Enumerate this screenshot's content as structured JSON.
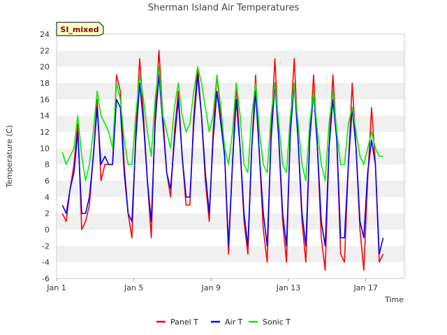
{
  "chart_data": {
    "type": "line",
    "title": "Sherman Island Air Temperatures",
    "xlabel": "Time",
    "ylabel": "Temperature (C)",
    "badge": "SI_mixed",
    "xlim": [
      1,
      19
    ],
    "ylim": [
      -6,
      24
    ],
    "y_ticks": [
      -6,
      -4,
      -2,
      0,
      2,
      4,
      6,
      8,
      10,
      12,
      14,
      16,
      18,
      20,
      22,
      24
    ],
    "x_ticks": [
      {
        "value": 1,
        "label": "Jan 1"
      },
      {
        "value": 5,
        "label": "Jan 5"
      },
      {
        "value": 9,
        "label": "Jan 9"
      },
      {
        "value": 13,
        "label": "Jan 13"
      },
      {
        "value": 17,
        "label": "Jan 17"
      }
    ],
    "grid": "horizontal bands",
    "legend_position": "bottom",
    "colors": {
      "band": "#f0f0f0",
      "axis": "#cccccc"
    },
    "series": [
      {
        "name": "Panel T",
        "color": "#ff0000",
        "x": [
          1.3,
          1.5,
          1.7,
          1.9,
          2.1,
          2.3,
          2.5,
          2.7,
          2.9,
          3.1,
          3.3,
          3.5,
          3.7,
          3.9,
          4.1,
          4.3,
          4.5,
          4.7,
          4.9,
          5.1,
          5.3,
          5.5,
          5.7,
          5.9,
          6.1,
          6.3,
          6.5,
          6.7,
          6.9,
          7.1,
          7.3,
          7.5,
          7.7,
          7.9,
          8.1,
          8.3,
          8.5,
          8.7,
          8.9,
          9.1,
          9.3,
          9.5,
          9.7,
          9.9,
          10.1,
          10.3,
          10.5,
          10.7,
          10.9,
          11.1,
          11.3,
          11.5,
          11.7,
          11.9,
          12.1,
          12.3,
          12.5,
          12.7,
          12.9,
          13.1,
          13.3,
          13.5,
          13.7,
          13.9,
          14.1,
          14.3,
          14.5,
          14.7,
          14.9,
          15.1,
          15.3,
          15.5,
          15.7,
          15.9,
          16.1,
          16.3,
          16.5,
          16.7,
          16.9,
          17.1,
          17.3,
          17.5,
          17.7,
          17.9
        ],
        "values": [
          2,
          1,
          5,
          8,
          13,
          0,
          1,
          3,
          9,
          16,
          6,
          8,
          8,
          8,
          19,
          17,
          8,
          2,
          -1,
          12,
          21,
          14,
          6,
          -1,
          14,
          22,
          14,
          7,
          4,
          12,
          17,
          9,
          3,
          3,
          14,
          20,
          14,
          6,
          1,
          12,
          19,
          14,
          9,
          -3,
          8,
          18,
          10,
          1,
          -3,
          10,
          19,
          9,
          0,
          -4,
          12,
          21,
          11,
          1,
          -4,
          13,
          21,
          11,
          1,
          -4,
          11,
          19,
          10,
          -1,
          -5,
          10,
          19,
          11,
          -3,
          -4,
          8,
          18,
          10,
          0,
          -5,
          6,
          15,
          8,
          -4,
          -3
        ]
      },
      {
        "name": "Air T",
        "color": "#0000ff",
        "x": [
          1.3,
          1.5,
          1.7,
          1.9,
          2.1,
          2.3,
          2.5,
          2.7,
          2.9,
          3.1,
          3.3,
          3.5,
          3.7,
          3.9,
          4.1,
          4.3,
          4.5,
          4.7,
          4.9,
          5.1,
          5.3,
          5.5,
          5.7,
          5.9,
          6.1,
          6.3,
          6.5,
          6.7,
          6.9,
          7.1,
          7.3,
          7.5,
          7.7,
          7.9,
          8.1,
          8.3,
          8.5,
          8.7,
          8.9,
          9.1,
          9.3,
          9.5,
          9.7,
          9.9,
          10.1,
          10.3,
          10.5,
          10.7,
          10.9,
          11.1,
          11.3,
          11.5,
          11.7,
          11.9,
          12.1,
          12.3,
          12.5,
          12.7,
          12.9,
          13.1,
          13.3,
          13.5,
          13.7,
          13.9,
          14.1,
          14.3,
          14.5,
          14.7,
          14.9,
          15.1,
          15.3,
          15.5,
          15.7,
          15.9,
          16.1,
          16.3,
          16.5,
          16.7,
          16.9,
          17.1,
          17.3,
          17.5,
          17.7,
          17.9
        ],
        "values": [
          3,
          2,
          5,
          7,
          12,
          2,
          2,
          4,
          9,
          15,
          8,
          9,
          8,
          8,
          16,
          15,
          7,
          2,
          1,
          11,
          18,
          13,
          6,
          1,
          13,
          19,
          13,
          7,
          5,
          11,
          16,
          9,
          4,
          4,
          13,
          19,
          14,
          7,
          2,
          11,
          17,
          13,
          9,
          -2,
          8,
          16,
          10,
          2,
          -2,
          10,
          17,
          9,
          2,
          -2,
          11,
          18,
          11,
          2,
          -2,
          12,
          18,
          11,
          2,
          -2,
          11,
          17,
          10,
          1,
          -2,
          10,
          16,
          11,
          -1,
          -1,
          8,
          15,
          10,
          1,
          -1,
          7,
          11,
          8,
          -3,
          -1
        ]
      },
      {
        "name": "Sonic T",
        "color": "#00ee00",
        "x": [
          1.3,
          1.5,
          1.7,
          1.9,
          2.1,
          2.3,
          2.5,
          2.7,
          2.9,
          3.1,
          3.3,
          3.5,
          3.7,
          3.9,
          4.1,
          4.3,
          4.5,
          4.7,
          4.9,
          5.1,
          5.3,
          5.5,
          5.7,
          5.9,
          6.1,
          6.3,
          6.5,
          6.7,
          6.9,
          7.1,
          7.3,
          7.5,
          7.7,
          7.9,
          8.1,
          8.3,
          8.5,
          8.7,
          8.9,
          9.1,
          9.3,
          9.5,
          9.7,
          9.9,
          10.1,
          10.3,
          10.5,
          10.7,
          10.9,
          11.1,
          11.3,
          11.5,
          11.7,
          11.9,
          12.1,
          12.3,
          12.5,
          12.7,
          12.9,
          13.1,
          13.3,
          13.5,
          13.7,
          13.9,
          14.1,
          14.3,
          14.5,
          14.7,
          14.9,
          15.1,
          15.3,
          15.5,
          15.7,
          15.9,
          16.1,
          16.3,
          16.5,
          16.7,
          16.9,
          17.1,
          17.3,
          17.5,
          17.7,
          17.9
        ],
        "values": [
          9.5,
          8,
          9,
          10,
          14,
          9,
          6,
          8,
          12,
          17,
          14,
          13,
          12,
          10,
          18,
          16,
          11,
          8,
          8,
          14,
          19,
          16,
          12,
          9,
          16,
          20,
          14,
          12,
          10,
          15,
          18,
          14,
          12,
          13,
          17,
          20,
          18,
          15,
          12,
          14,
          19,
          15,
          10,
          8,
          12,
          18,
          14,
          8,
          7,
          14,
          18,
          12,
          8,
          7,
          14,
          18,
          13,
          8,
          7,
          14,
          18,
          13,
          8,
          6,
          13,
          17,
          12,
          8,
          6,
          13,
          17,
          12,
          8,
          8,
          13,
          15,
          12,
          9,
          8,
          10,
          12,
          10,
          9,
          9
        ]
      }
    ]
  }
}
